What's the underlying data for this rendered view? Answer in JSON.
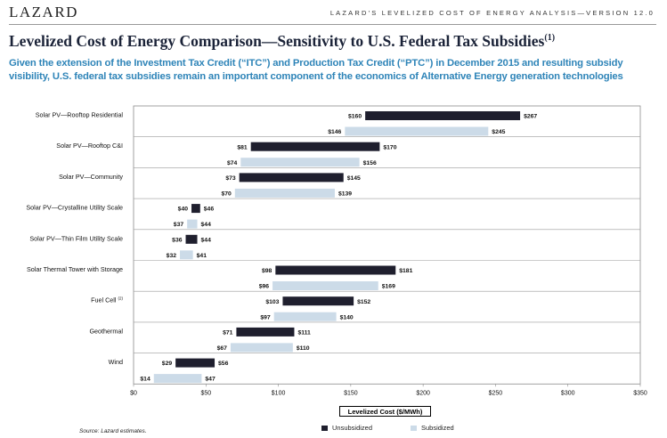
{
  "header": {
    "logo": "LAZARD",
    "report": "LAZARD'S LEVELIZED COST OF ENERGY ANALYSIS—VERSION 12.0"
  },
  "title": "Levelized Cost of Energy Comparison—Sensitivity to U.S. Federal Tax Subsidies",
  "title_note": "(1)",
  "subtitle": "Given the extension of the Investment Tax Credit (“ITC”) and Production Tax Credit (“PTC”) in December 2015 and resulting subsidy visibility, U.S. federal tax subsidies remain an important component of the economics of Alternative Energy generation technologies",
  "source": "Source: Lazard estimates.",
  "chart_data": {
    "type": "bar",
    "orientation": "horizontal-floating",
    "xlabel": "Levelized Cost ($/MWh)",
    "xlim": [
      0,
      350
    ],
    "xticks": [
      "$0",
      "$50",
      "$100",
      "$150",
      "$200",
      "$250",
      "$300",
      "$350"
    ],
    "xtick_values": [
      0,
      50,
      100,
      150,
      200,
      250,
      300,
      350
    ],
    "legend_position": "bottom-center",
    "series": [
      {
        "name": "Unsubsidized",
        "color": "#1f1f2e"
      },
      {
        "name": "Subsidized",
        "color": "#ccdbe8"
      }
    ],
    "categories": [
      {
        "label": "Solar PV—Rooftop Residential",
        "note": "",
        "unsubsidized": [
          160,
          267
        ],
        "subsidized": [
          146,
          245
        ]
      },
      {
        "label": "Solar PV—Rooftop C&I",
        "note": "",
        "unsubsidized": [
          81,
          170
        ],
        "subsidized": [
          74,
          156
        ]
      },
      {
        "label": "Solar PV—Community",
        "note": "",
        "unsubsidized": [
          73,
          145
        ],
        "subsidized": [
          70,
          139
        ]
      },
      {
        "label": "Solar PV—Crystalline Utility Scale",
        "note": "",
        "unsubsidized": [
          40,
          46
        ],
        "subsidized": [
          37,
          44
        ]
      },
      {
        "label": "Solar PV—Thin Film Utility Scale",
        "note": "",
        "unsubsidized": [
          36,
          44
        ],
        "subsidized": [
          32,
          41
        ]
      },
      {
        "label": "Solar Thermal Tower with Storage",
        "note": "",
        "unsubsidized": [
          98,
          181
        ],
        "subsidized": [
          96,
          169
        ]
      },
      {
        "label": "Fuel Cell",
        "note": "(2)",
        "unsubsidized": [
          103,
          152
        ],
        "subsidized": [
          97,
          140
        ]
      },
      {
        "label": "Geothermal",
        "note": "",
        "unsubsidized": [
          71,
          111
        ],
        "subsidized": [
          67,
          110
        ]
      },
      {
        "label": "Wind",
        "note": "",
        "unsubsidized": [
          29,
          56
        ],
        "subsidized": [
          14,
          47
        ]
      }
    ]
  }
}
